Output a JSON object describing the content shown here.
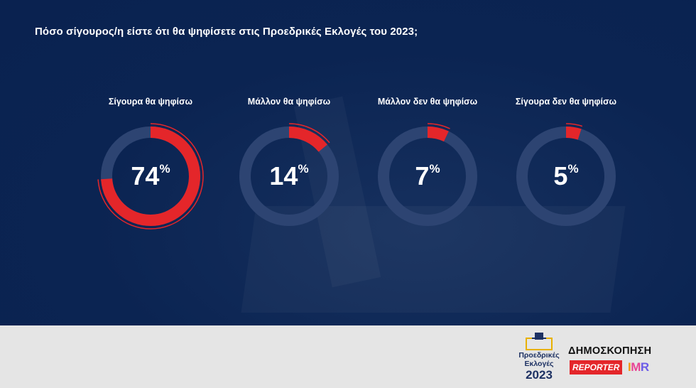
{
  "title": "Πόσο σίγουρος/η είστε ότι θα ψηφίσετε στις Προεδρικές Εκλογές του 2023;",
  "colors": {
    "background": "#0b2452",
    "track": "#2d4472",
    "fill": "#e4262a",
    "text": "#ffffff",
    "footer": "#e5e5e5"
  },
  "chart_data": {
    "type": "pie",
    "title": "Πόσο σίγουρος/η είστε ότι θα ψηφίσετε στις Προεδρικές Εκλογές του 2023;",
    "unit": "%",
    "categories": [
      "Σίγουρα θα ψηφίσω",
      "Μάλλον θα ψηφίσω",
      "Μάλλον δεν θα ψηφίσω",
      "Σίγουρα δεν θα ψηφίσω"
    ],
    "values": [
      74,
      14,
      7,
      5
    ],
    "value_labels": [
      "74",
      "14",
      "7",
      "5"
    ]
  },
  "footer": {
    "election_logo": {
      "line1": "Προεδρικές",
      "line2": "Εκλογές",
      "year": "2023",
      "icon": "ballot-box-icon"
    },
    "poll_label": "ΔΗΜΟΣΚΟΠΗΣΗ",
    "reporter_label": "REPORTER",
    "imr_label": [
      "I",
      "M",
      "R"
    ]
  }
}
